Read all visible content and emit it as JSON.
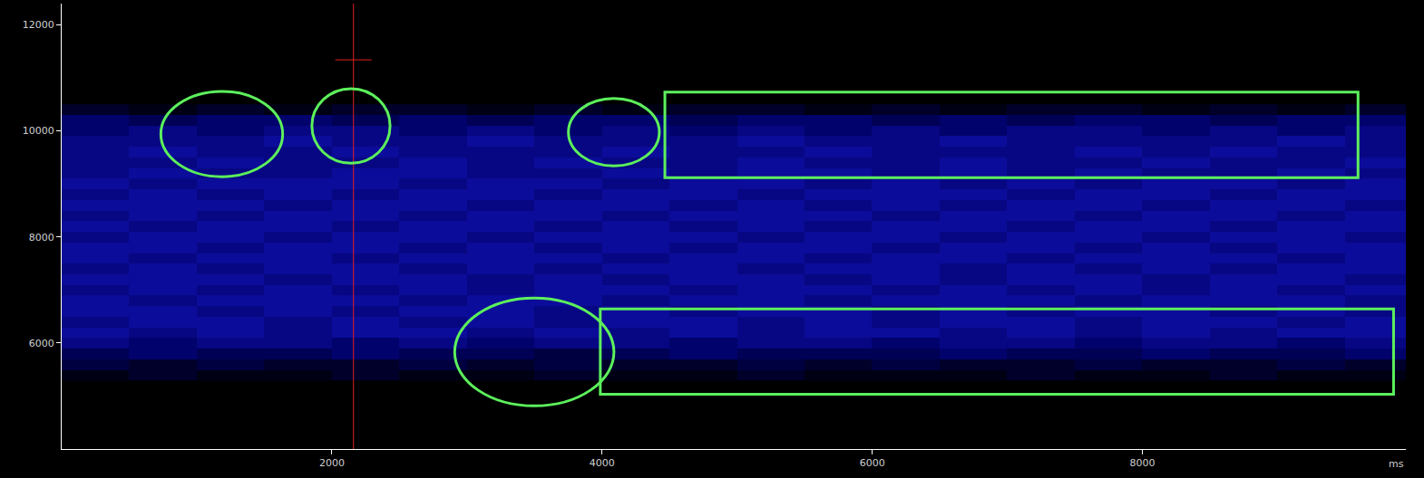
{
  "chart_data": {
    "type": "heatmap",
    "x_label": "ms",
    "x": [
      250,
      750,
      1250,
      1750,
      2250,
      2750,
      3250,
      3750,
      4250,
      4750,
      5250,
      5750,
      6250,
      6750,
      7250,
      7750,
      8250,
      8750,
      9250,
      9750
    ],
    "y": [
      5400,
      5600,
      5800,
      6000,
      6200,
      6400,
      6600,
      6800,
      7000,
      7200,
      7400,
      7600,
      7800,
      8000,
      8200,
      8400,
      8600,
      8800,
      9000,
      9200,
      9400,
      9600,
      9800,
      10000,
      10200,
      10400
    ],
    "cells": [
      [
        1,
        2,
        1,
        1,
        2,
        1,
        1,
        2,
        1,
        1,
        2,
        1,
        1,
        1,
        2,
        1,
        1,
        2,
        1,
        1
      ],
      [
        3,
        2,
        3,
        2,
        2,
        3,
        2,
        3,
        2,
        2,
        3,
        2,
        3,
        2,
        2,
        3,
        2,
        2,
        3,
        2
      ],
      [
        4,
        5,
        4,
        4,
        5,
        4,
        4,
        3,
        4,
        5,
        4,
        4,
        4,
        5,
        4,
        4,
        5,
        4,
        4,
        5
      ],
      [
        6,
        5,
        6,
        6,
        5,
        6,
        5,
        6,
        6,
        5,
        6,
        6,
        5,
        6,
        6,
        5,
        6,
        6,
        5,
        6
      ],
      [
        7,
        6,
        7,
        6,
        7,
        7,
        6,
        7,
        6,
        7,
        6,
        7,
        7,
        6,
        7,
        6,
        7,
        6,
        7,
        7
      ],
      [
        6,
        7,
        7,
        6,
        7,
        6,
        7,
        6,
        7,
        7,
        6,
        7,
        6,
        7,
        7,
        6,
        7,
        7,
        6,
        7
      ],
      [
        7,
        7,
        6,
        7,
        6,
        7,
        7,
        6,
        7,
        6,
        7,
        7,
        6,
        7,
        6,
        7,
        7,
        6,
        7,
        6
      ],
      [
        7,
        6,
        7,
        7,
        7,
        6,
        7,
        7,
        6,
        7,
        7,
        6,
        7,
        7,
        7,
        6,
        7,
        7,
        7,
        6
      ],
      [
        6,
        7,
        6,
        7,
        6,
        7,
        6,
        7,
        7,
        6,
        7,
        7,
        6,
        7,
        6,
        7,
        6,
        7,
        6,
        7
      ],
      [
        7,
        7,
        7,
        6,
        7,
        7,
        6,
        7,
        6,
        7,
        7,
        6,
        7,
        6,
        7,
        7,
        6,
        7,
        7,
        6
      ],
      [
        6,
        7,
        6,
        7,
        7,
        6,
        7,
        6,
        7,
        7,
        6,
        7,
        7,
        6,
        7,
        6,
        7,
        6,
        7,
        7
      ],
      [
        7,
        6,
        7,
        7,
        6,
        7,
        7,
        7,
        6,
        7,
        7,
        6,
        7,
        7,
        6,
        7,
        7,
        7,
        6,
        7
      ],
      [
        7,
        7,
        6,
        7,
        7,
        6,
        7,
        6,
        7,
        6,
        7,
        7,
        6,
        7,
        7,
        6,
        7,
        6,
        7,
        7
      ],
      [
        6,
        7,
        7,
        6,
        7,
        7,
        6,
        7,
        7,
        7,
        6,
        7,
        7,
        6,
        7,
        7,
        6,
        7,
        7,
        6
      ],
      [
        7,
        6,
        7,
        7,
        6,
        7,
        7,
        6,
        7,
        6,
        7,
        6,
        7,
        7,
        6,
        7,
        7,
        6,
        7,
        7
      ],
      [
        6,
        7,
        6,
        7,
        7,
        6,
        7,
        7,
        6,
        7,
        7,
        7,
        6,
        7,
        7,
        6,
        7,
        7,
        6,
        7
      ],
      [
        7,
        7,
        7,
        6,
        7,
        7,
        6,
        7,
        7,
        6,
        7,
        6,
        7,
        6,
        7,
        7,
        6,
        7,
        7,
        6
      ],
      [
        6,
        7,
        6,
        7,
        6,
        7,
        7,
        6,
        7,
        7,
        6,
        7,
        7,
        7,
        6,
        7,
        7,
        6,
        7,
        7
      ],
      [
        7,
        6,
        7,
        7,
        7,
        6,
        7,
        7,
        6,
        7,
        7,
        6,
        7,
        6,
        7,
        6,
        7,
        7,
        6,
        7
      ],
      [
        6,
        7,
        6,
        6,
        7,
        7,
        6,
        6,
        7,
        6,
        7,
        7,
        6,
        7,
        6,
        7,
        6,
        6,
        7,
        6
      ],
      [
        6,
        6,
        7,
        6,
        6,
        7,
        6,
        7,
        6,
        6,
        7,
        6,
        6,
        7,
        6,
        6,
        7,
        6,
        6,
        7
      ],
      [
        6,
        7,
        6,
        6,
        7,
        6,
        6,
        6,
        7,
        6,
        6,
        7,
        6,
        6,
        6,
        7,
        6,
        7,
        6,
        6
      ],
      [
        6,
        6,
        6,
        7,
        6,
        6,
        7,
        6,
        6,
        6,
        7,
        6,
        6,
        7,
        6,
        6,
        6,
        6,
        7,
        6
      ],
      [
        5,
        6,
        5,
        6,
        6,
        5,
        6,
        5,
        6,
        5,
        6,
        5,
        6,
        5,
        6,
        6,
        5,
        6,
        5,
        6
      ],
      [
        5,
        4,
        5,
        5,
        4,
        5,
        4,
        5,
        5,
        4,
        5,
        5,
        4,
        5,
        4,
        5,
        5,
        4,
        5,
        5
      ],
      [
        2,
        1,
        2,
        1,
        2,
        2,
        1,
        2,
        1,
        2,
        2,
        1,
        2,
        1,
        2,
        2,
        1,
        2,
        1,
        2
      ]
    ],
    "zlim": [
      0,
      10
    ],
    "color": "#1a1ae0",
    "xlim": [
      0,
      9950
    ],
    "xticks": [
      2000,
      4000,
      6000,
      8000
    ],
    "ylim": [
      4000,
      12400
    ],
    "yticks": [
      6000,
      8000,
      10000,
      12000
    ],
    "grid": false,
    "cursor": {
      "x": 2160,
      "y": 11340,
      "color": "#e02020"
    },
    "regions": {
      "color": "#5cf05c",
      "items": [
        {
          "x": [
            734,
            1636
          ],
          "y": [
            9136,
            10746
          ],
          "marker": "ellipse"
        },
        {
          "x": [
            1852,
            2431
          ],
          "y": [
            9390,
            10797
          ],
          "marker": "ellipse"
        },
        {
          "x": [
            3751,
            4424
          ],
          "y": [
            9339,
            10610
          ],
          "marker": "ellipse"
        },
        {
          "x": [
            4465,
            9596
          ],
          "y": [
            9119,
            10729
          ],
          "marker": "rect"
        },
        {
          "x": [
            2909,
            4088
          ],
          "y": [
            4814,
            6847
          ],
          "marker": "ellipse"
        },
        {
          "x": [
            3987,
            9859
          ],
          "y": [
            5034,
            6644
          ],
          "marker": "rect"
        }
      ]
    }
  }
}
